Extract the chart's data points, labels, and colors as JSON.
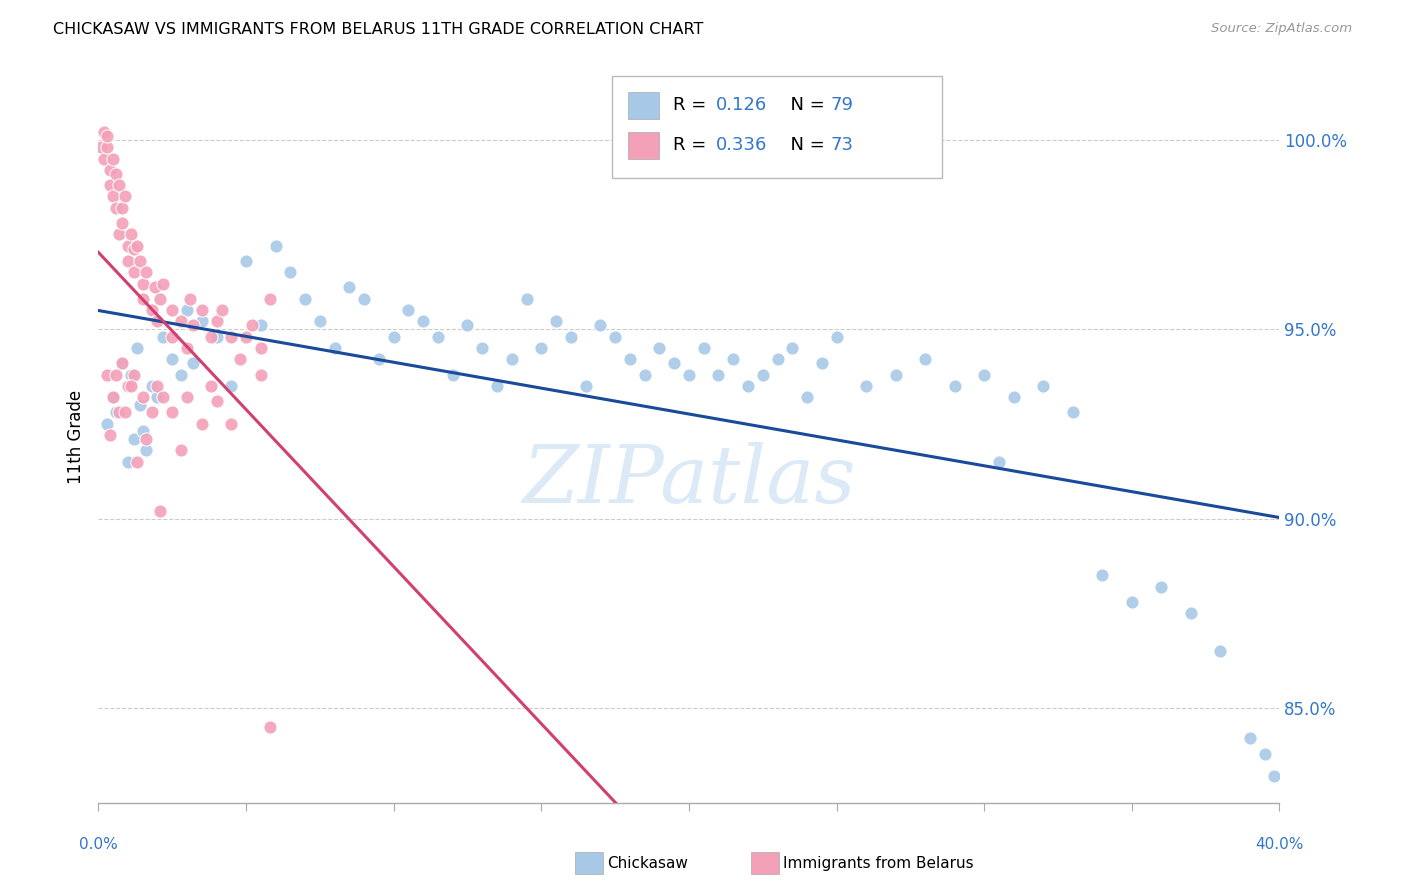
{
  "title": "CHICKASAW VS IMMIGRANTS FROM BELARUS 11TH GRADE CORRELATION CHART",
  "source": "Source: ZipAtlas.com",
  "ylabel": "11th Grade",
  "y_ticks": [
    85.0,
    90.0,
    95.0,
    100.0
  ],
  "x_min": 0.0,
  "x_max": 40.0,
  "y_min": 82.5,
  "y_max": 101.8,
  "blue_color": "#a8c8e8",
  "pink_color": "#f4a0b8",
  "blue_line_color": "#1a4a9a",
  "pink_line_color": "#d04070",
  "watermark": "ZIPatlas",
  "blue_x": [
    0.3,
    0.5,
    0.6,
    0.8,
    1.0,
    1.1,
    1.2,
    1.3,
    1.4,
    1.5,
    1.6,
    1.8,
    2.0,
    2.2,
    2.5,
    2.8,
    3.0,
    3.2,
    3.5,
    4.0,
    4.5,
    5.0,
    5.5,
    6.0,
    6.5,
    7.0,
    7.5,
    8.0,
    8.5,
    9.0,
    9.5,
    10.0,
    10.5,
    11.0,
    11.5,
    12.0,
    12.5,
    13.0,
    13.5,
    14.0,
    14.5,
    15.0,
    15.5,
    16.0,
    16.5,
    17.0,
    17.5,
    18.0,
    18.5,
    19.0,
    19.5,
    20.0,
    20.5,
    21.0,
    21.5,
    22.0,
    22.5,
    23.0,
    23.5,
    24.0,
    24.5,
    25.0,
    26.0,
    27.0,
    28.0,
    29.0,
    30.0,
    31.0,
    32.0,
    33.0,
    34.0,
    35.0,
    36.0,
    37.0,
    38.0,
    39.0,
    39.5,
    39.8,
    30.5
  ],
  "blue_y": [
    92.5,
    93.2,
    92.8,
    94.1,
    91.5,
    93.8,
    92.1,
    94.5,
    93.0,
    92.3,
    91.8,
    93.5,
    93.2,
    94.8,
    94.2,
    93.8,
    95.5,
    94.1,
    95.2,
    94.8,
    93.5,
    96.8,
    95.1,
    97.2,
    96.5,
    95.8,
    95.2,
    94.5,
    96.1,
    95.8,
    94.2,
    94.8,
    95.5,
    95.2,
    94.8,
    93.8,
    95.1,
    94.5,
    93.5,
    94.2,
    95.8,
    94.5,
    95.2,
    94.8,
    93.5,
    95.1,
    94.8,
    94.2,
    93.8,
    94.5,
    94.1,
    93.8,
    94.5,
    93.8,
    94.2,
    93.5,
    93.8,
    94.2,
    94.5,
    93.2,
    94.1,
    94.8,
    93.5,
    93.8,
    94.2,
    93.5,
    93.8,
    93.2,
    93.5,
    92.8,
    88.5,
    87.8,
    88.2,
    87.5,
    86.5,
    84.2,
    83.8,
    83.2,
    91.5
  ],
  "pink_x": [
    0.1,
    0.2,
    0.2,
    0.3,
    0.3,
    0.4,
    0.4,
    0.5,
    0.5,
    0.6,
    0.6,
    0.7,
    0.7,
    0.8,
    0.8,
    0.9,
    1.0,
    1.0,
    1.1,
    1.2,
    1.2,
    1.3,
    1.4,
    1.5,
    1.5,
    1.6,
    1.8,
    1.9,
    2.0,
    2.1,
    2.2,
    2.5,
    2.5,
    2.8,
    3.0,
    3.1,
    3.2,
    3.5,
    3.8,
    4.0,
    4.2,
    4.5,
    4.8,
    5.0,
    5.2,
    5.5,
    5.8,
    0.3,
    0.5,
    0.6,
    0.8,
    1.0,
    1.2,
    1.5,
    1.8,
    2.0,
    2.5,
    3.0,
    3.5,
    4.0,
    0.4,
    0.7,
    1.1,
    1.6,
    2.2,
    2.8,
    3.8,
    4.5,
    5.5,
    0.9,
    1.3,
    2.1,
    5.8
  ],
  "pink_y": [
    99.8,
    100.2,
    99.5,
    99.8,
    100.1,
    99.2,
    98.8,
    99.5,
    98.5,
    99.1,
    98.2,
    98.8,
    97.5,
    98.2,
    97.8,
    98.5,
    97.2,
    96.8,
    97.5,
    97.1,
    96.5,
    97.2,
    96.8,
    96.2,
    95.8,
    96.5,
    95.5,
    96.1,
    95.2,
    95.8,
    96.2,
    95.5,
    94.8,
    95.2,
    94.5,
    95.8,
    95.1,
    95.5,
    94.8,
    95.2,
    95.5,
    94.8,
    94.2,
    94.8,
    95.1,
    94.5,
    95.8,
    93.8,
    93.2,
    93.8,
    94.1,
    93.5,
    93.8,
    93.2,
    92.8,
    93.5,
    92.8,
    93.2,
    92.5,
    93.1,
    92.2,
    92.8,
    93.5,
    92.1,
    93.2,
    91.8,
    93.5,
    92.5,
    93.8,
    92.8,
    91.5,
    90.2,
    84.5
  ]
}
